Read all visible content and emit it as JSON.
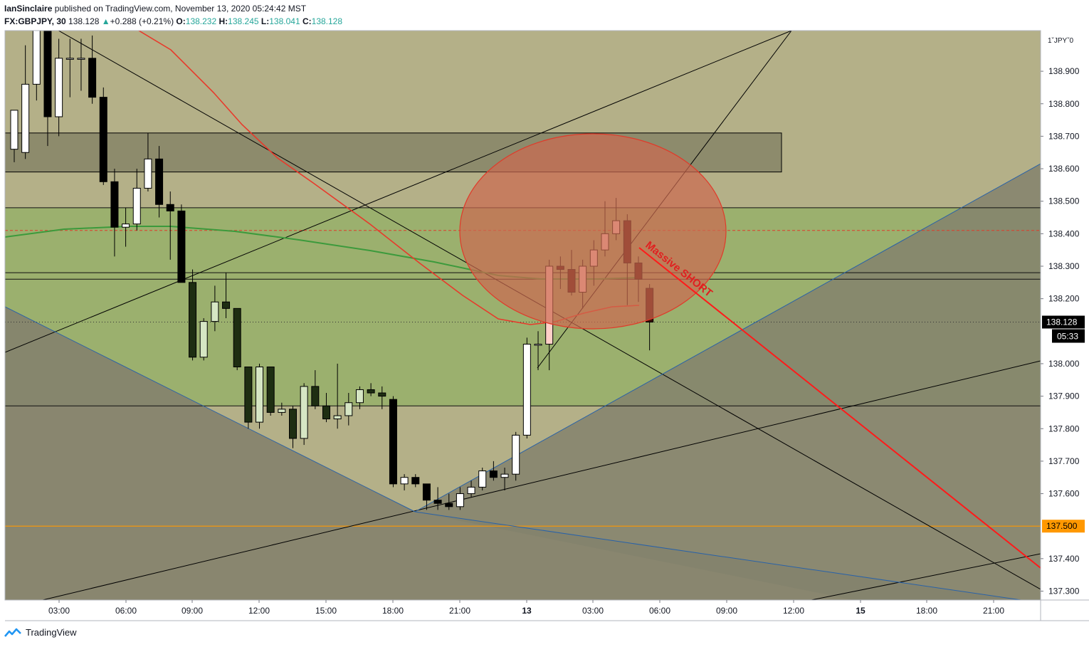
{
  "header": {
    "author": "IanSinclaire",
    "published_text": " published on TradingView.com, November 13, 2020 05:24:42 MST",
    "symbol": "FX:GBPJPY, 30",
    "last": "138.128",
    "change": "+0.288 (+0.21%)",
    "o_label": "O:",
    "o_value": "138.232",
    "h_label": "H:",
    "h_value": "138.245",
    "l_label": "L:",
    "l_value": "138.041",
    "c_label": "C:",
    "c_value": "138.128"
  },
  "footer": {
    "brand": "TradingView"
  },
  "colors": {
    "bg_upper": "#b4b088",
    "bg_lower": "#b5b189",
    "green_zone": "#9bb06e",
    "gray_wedge": "#84826d",
    "dark_box": "#8d8b6c",
    "ellipse_fill": "#cc6a50",
    "ellipse_stroke": "#e03a2a",
    "ma_red": "#e8392b",
    "ma_green": "#3c9a3c",
    "short_line": "#ff1a1a",
    "price_label_bg": "#000000",
    "orange_level": "#ff9800",
    "blue_line": "#2962a8"
  },
  "chart_data": {
    "type": "candlestick",
    "symbol": "FX:GBPJPY",
    "timeframe": "30",
    "currency_label": "JPY",
    "y_ticks": [
      "138.900",
      "138.800",
      "138.700",
      "138.600",
      "138.500",
      "138.400",
      "138.300",
      "138.200",
      "138.000",
      "137.900",
      "137.800",
      "137.700",
      "137.600",
      "137.400",
      "137.300"
    ],
    "x_ticks": [
      "03:00",
      "06:00",
      "09:00",
      "12:00",
      "15:00",
      "18:00",
      "21:00",
      "13",
      "03:00",
      "06:00",
      "09:00",
      "12:00",
      "15",
      "18:00",
      "21:00"
    ],
    "last_price": "138.128",
    "countdown": "05:33",
    "orange_level_label": "137.500",
    "annotation": "Massive SHORT",
    "levels": [
      {
        "price": 138.48,
        "style": "solid"
      },
      {
        "price": 138.41,
        "style": "dashed-red"
      },
      {
        "price": 138.28,
        "style": "solid"
      },
      {
        "price": 138.26,
        "style": "solid"
      },
      {
        "price": 137.87,
        "style": "solid"
      },
      {
        "price": 137.5,
        "style": "orange"
      },
      {
        "price": 138.128,
        "style": "dotted"
      }
    ],
    "resistance_zone": {
      "from": 138.59,
      "to": 138.71
    },
    "candles": [
      {
        "o": 138.66,
        "h": 138.78,
        "l": 138.62,
        "c": 138.78
      },
      {
        "o": 138.65,
        "h": 138.98,
        "l": 138.63,
        "c": 138.86
      },
      {
        "o": 138.86,
        "h": 139.06,
        "l": 138.81,
        "c": 139.03
      },
      {
        "o": 139.03,
        "h": 139.05,
        "l": 138.67,
        "c": 138.76
      },
      {
        "o": 138.76,
        "h": 139.0,
        "l": 138.7,
        "c": 138.94
      },
      {
        "o": 138.94,
        "h": 139.0,
        "l": 138.82,
        "c": 138.94
      },
      {
        "o": 138.94,
        "h": 139.0,
        "l": 138.84,
        "c": 138.94
      },
      {
        "o": 138.94,
        "h": 139.01,
        "l": 138.8,
        "c": 138.82
      },
      {
        "o": 138.82,
        "h": 138.85,
        "l": 138.55,
        "c": 138.56
      },
      {
        "o": 138.56,
        "h": 138.6,
        "l": 138.33,
        "c": 138.42
      },
      {
        "o": 138.42,
        "h": 138.48,
        "l": 138.36,
        "c": 138.43
      },
      {
        "o": 138.43,
        "h": 138.6,
        "l": 138.41,
        "c": 138.54
      },
      {
        "o": 138.54,
        "h": 138.71,
        "l": 138.53,
        "c": 138.63
      },
      {
        "o": 138.63,
        "h": 138.67,
        "l": 138.45,
        "c": 138.49
      },
      {
        "o": 138.49,
        "h": 138.53,
        "l": 138.32,
        "c": 138.47
      },
      {
        "o": 138.47,
        "h": 138.49,
        "l": 138.25,
        "c": 138.25
      },
      {
        "o": 138.25,
        "h": 138.29,
        "l": 138.01,
        "c": 138.02
      },
      {
        "o": 138.02,
        "h": 138.14,
        "l": 138.01,
        "c": 138.13
      },
      {
        "o": 138.13,
        "h": 138.24,
        "l": 138.1,
        "c": 138.19
      },
      {
        "o": 138.19,
        "h": 138.28,
        "l": 138.14,
        "c": 138.17
      },
      {
        "o": 138.17,
        "h": 138.17,
        "l": 137.98,
        "c": 137.99
      },
      {
        "o": 137.99,
        "h": 137.99,
        "l": 137.8,
        "c": 137.82
      },
      {
        "o": 137.82,
        "h": 138.0,
        "l": 137.8,
        "c": 137.99
      },
      {
        "o": 137.99,
        "h": 137.99,
        "l": 137.84,
        "c": 137.85
      },
      {
        "o": 137.85,
        "h": 137.88,
        "l": 137.84,
        "c": 137.86
      },
      {
        "o": 137.86,
        "h": 137.87,
        "l": 137.74,
        "c": 137.77
      },
      {
        "o": 137.77,
        "h": 137.94,
        "l": 137.75,
        "c": 137.93
      },
      {
        "o": 137.93,
        "h": 137.98,
        "l": 137.86,
        "c": 137.87
      },
      {
        "o": 137.87,
        "h": 137.91,
        "l": 137.82,
        "c": 137.83
      },
      {
        "o": 137.83,
        "h": 138.0,
        "l": 137.8,
        "c": 137.84
      },
      {
        "o": 137.84,
        "h": 137.91,
        "l": 137.81,
        "c": 137.88
      },
      {
        "o": 137.88,
        "h": 137.93,
        "l": 137.86,
        "c": 137.92
      },
      {
        "o": 137.92,
        "h": 137.94,
        "l": 137.9,
        "c": 137.91
      },
      {
        "o": 137.91,
        "h": 137.93,
        "l": 137.86,
        "c": 137.9
      },
      {
        "o": 137.89,
        "h": 137.9,
        "l": 137.62,
        "c": 137.63
      },
      {
        "o": 137.63,
        "h": 137.66,
        "l": 137.61,
        "c": 137.65
      },
      {
        "o": 137.65,
        "h": 137.66,
        "l": 137.62,
        "c": 137.63
      },
      {
        "o": 137.63,
        "h": 137.63,
        "l": 137.55,
        "c": 137.58
      },
      {
        "o": 137.58,
        "h": 137.62,
        "l": 137.55,
        "c": 137.57
      },
      {
        "o": 137.57,
        "h": 137.6,
        "l": 137.55,
        "c": 137.56
      },
      {
        "o": 137.56,
        "h": 137.62,
        "l": 137.55,
        "c": 137.6
      },
      {
        "o": 137.6,
        "h": 137.64,
        "l": 137.59,
        "c": 137.62
      },
      {
        "o": 137.62,
        "h": 137.68,
        "l": 137.61,
        "c": 137.67
      },
      {
        "o": 137.67,
        "h": 137.7,
        "l": 137.64,
        "c": 137.65
      },
      {
        "o": 137.65,
        "h": 137.68,
        "l": 137.61,
        "c": 137.66
      },
      {
        "o": 137.66,
        "h": 137.79,
        "l": 137.64,
        "c": 137.78
      },
      {
        "o": 137.78,
        "h": 138.08,
        "l": 137.77,
        "c": 138.06
      },
      {
        "o": 138.06,
        "h": 138.1,
        "l": 137.98,
        "c": 138.06
      },
      {
        "o": 138.06,
        "h": 138.32,
        "l": 137.98,
        "c": 138.3
      },
      {
        "o": 138.3,
        "h": 138.33,
        "l": 138.23,
        "c": 138.29
      },
      {
        "o": 138.29,
        "h": 138.35,
        "l": 138.21,
        "c": 138.22
      },
      {
        "o": 138.22,
        "h": 138.32,
        "l": 138.17,
        "c": 138.3
      },
      {
        "o": 138.3,
        "h": 138.38,
        "l": 138.24,
        "c": 138.35
      },
      {
        "o": 138.35,
        "h": 138.5,
        "l": 138.33,
        "c": 138.4
      },
      {
        "o": 138.4,
        "h": 138.51,
        "l": 138.38,
        "c": 138.44
      },
      {
        "o": 138.44,
        "h": 138.46,
        "l": 138.18,
        "c": 138.31
      },
      {
        "o": 138.31,
        "h": 138.33,
        "l": 138.19,
        "c": 138.26
      },
      {
        "o": 138.232,
        "h": 138.245,
        "l": 138.041,
        "c": 138.128
      }
    ]
  }
}
